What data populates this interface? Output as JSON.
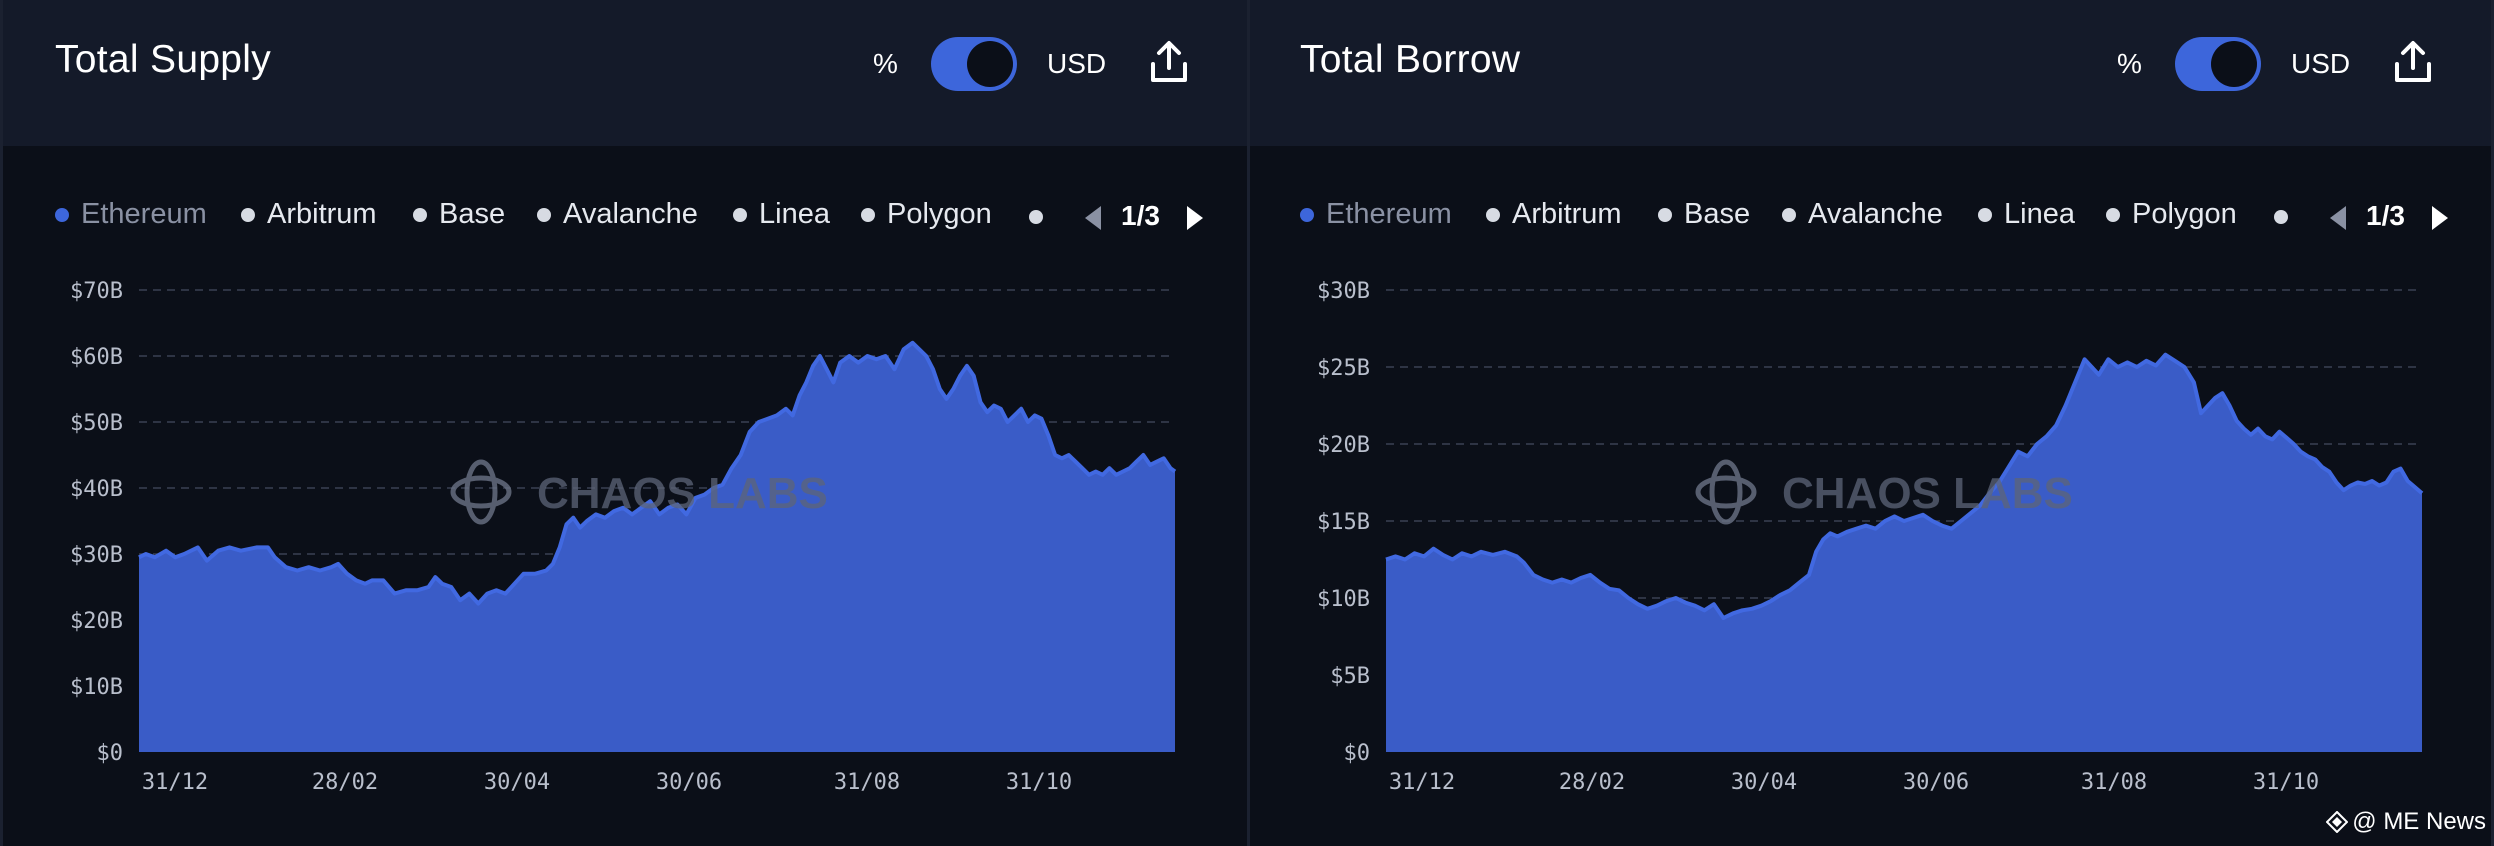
{
  "panels": [
    {
      "title": "Total Supply",
      "toggle_left": "%",
      "toggle_right": "USD",
      "legend": [
        "Ethereum",
        "Arbitrum",
        "Base",
        "Avalanche",
        "Linea",
        "Polygon"
      ],
      "pager": "1/3",
      "watermark": "CHAOS LABS"
    },
    {
      "title": "Total Borrow",
      "toggle_left": "%",
      "toggle_right": "USD",
      "legend": [
        "Ethereum",
        "Arbitrum",
        "Base",
        "Avalanche",
        "Linea",
        "Polygon"
      ],
      "pager": "1/3",
      "watermark": "CHAOS LABS"
    }
  ],
  "credit": "@ ME News",
  "colors": {
    "series": "#3a5cc7",
    "line": "#4169e1",
    "active_dot": "#3d66db"
  },
  "chart_data": [
    {
      "type": "area",
      "title": "Total Supply",
      "series_name": "Ethereum",
      "x_tick_labels": [
        "31/12",
        "28/02",
        "30/04",
        "30/06",
        "31/08",
        "31/10"
      ],
      "y_tick_labels": [
        "$0",
        "$10B",
        "$20B",
        "$30B",
        "$40B",
        "$50B",
        "$60B",
        "$70B"
      ],
      "ylim": [
        0,
        70
      ],
      "unit": "B USD",
      "grid": true,
      "points": [
        [
          0,
          29.5
        ],
        [
          3,
          30
        ],
        [
          7,
          29.5
        ],
        [
          12,
          30.5
        ],
        [
          16,
          29.5
        ],
        [
          20,
          30
        ],
        [
          26,
          31
        ],
        [
          30,
          29
        ],
        [
          35,
          30.5
        ],
        [
          40,
          31
        ],
        [
          45,
          30.5
        ],
        [
          52,
          31
        ],
        [
          57,
          31
        ],
        [
          60,
          29.5
        ],
        [
          65,
          28
        ],
        [
          70,
          27.5
        ],
        [
          75,
          28
        ],
        [
          80,
          27.5
        ],
        [
          85,
          28
        ],
        [
          88,
          28.5
        ],
        [
          92,
          27
        ],
        [
          96,
          26
        ],
        [
          100,
          25.5
        ],
        [
          103,
          26
        ],
        [
          108,
          26
        ],
        [
          113,
          24
        ],
        [
          118,
          24.5
        ],
        [
          123,
          24.5
        ],
        [
          128,
          25
        ],
        [
          131,
          26.5
        ],
        [
          134,
          25.5
        ],
        [
          138,
          25
        ],
        [
          142,
          23
        ],
        [
          146,
          24
        ],
        [
          150,
          22.5
        ],
        [
          154,
          24
        ],
        [
          158,
          24.5
        ],
        [
          162,
          24
        ],
        [
          166,
          25.5
        ],
        [
          170,
          27
        ],
        [
          175,
          27
        ],
        [
          180,
          27.5
        ],
        [
          183,
          28.5
        ],
        [
          186,
          31
        ],
        [
          189,
          34.5
        ],
        [
          192,
          35.5
        ],
        [
          195,
          34
        ],
        [
          198,
          35
        ],
        [
          202,
          36
        ],
        [
          206,
          35.5
        ],
        [
          210,
          36.5
        ],
        [
          214,
          37
        ],
        [
          218,
          36
        ],
        [
          222,
          37
        ],
        [
          226,
          38
        ],
        [
          230,
          36
        ],
        [
          234,
          37
        ],
        [
          238,
          37.5
        ],
        [
          242,
          36
        ],
        [
          246,
          38.5
        ],
        [
          250,
          39
        ],
        [
          254,
          40
        ],
        [
          258,
          40.5
        ],
        [
          262,
          43
        ],
        [
          266,
          45
        ],
        [
          270,
          48.5
        ],
        [
          274,
          50
        ],
        [
          278,
          50.5
        ],
        [
          282,
          51
        ],
        [
          286,
          52
        ],
        [
          289,
          51
        ],
        [
          292,
          54
        ],
        [
          295,
          56
        ],
        [
          298,
          58.5
        ],
        [
          301,
          60
        ],
        [
          304,
          58
        ],
        [
          307,
          56
        ],
        [
          310,
          59
        ],
        [
          314,
          60
        ],
        [
          318,
          59
        ],
        [
          322,
          60
        ],
        [
          326,
          59.5
        ],
        [
          330,
          60
        ],
        [
          334,
          58
        ],
        [
          338,
          61
        ],
        [
          342,
          62
        ],
        [
          345,
          61
        ],
        [
          348,
          60
        ],
        [
          351,
          58
        ],
        [
          354,
          55
        ],
        [
          357,
          53.5
        ],
        [
          360,
          55
        ],
        [
          363,
          57
        ],
        [
          366,
          58.5
        ],
        [
          369,
          57
        ],
        [
          372,
          53
        ],
        [
          375,
          51.5
        ],
        [
          378,
          52.5
        ],
        [
          381,
          52
        ],
        [
          384,
          50
        ],
        [
          387,
          51
        ],
        [
          390,
          52
        ],
        [
          393,
          50
        ],
        [
          396,
          51
        ],
        [
          399,
          50.5
        ],
        [
          402,
          48
        ],
        [
          405,
          45
        ],
        [
          408,
          44.5
        ],
        [
          411,
          45
        ],
        [
          414,
          44
        ],
        [
          417,
          43
        ],
        [
          420,
          42
        ],
        [
          423,
          42.5
        ],
        [
          426,
          42
        ],
        [
          429,
          43
        ],
        [
          432,
          42
        ],
        [
          435,
          42.5
        ],
        [
          438,
          43
        ],
        [
          441,
          44
        ],
        [
          444,
          45
        ],
        [
          447,
          43.5
        ],
        [
          450,
          44
        ],
        [
          453,
          44.5
        ],
        [
          456,
          43
        ],
        [
          458,
          42.5
        ]
      ]
    },
    {
      "type": "area",
      "title": "Total Borrow",
      "series_name": "Ethereum",
      "x_tick_labels": [
        "31/12",
        "28/02",
        "30/04",
        "30/06",
        "31/08",
        "31/10"
      ],
      "y_tick_labels": [
        "$0",
        "$5B",
        "$10B",
        "$15B",
        "$20B",
        "$25B",
        "$30B"
      ],
      "ylim": [
        0,
        30
      ],
      "unit": "B USD",
      "grid": true,
      "points": [
        [
          0,
          12.5
        ],
        [
          4,
          12.7
        ],
        [
          8,
          12.5
        ],
        [
          12,
          12.9
        ],
        [
          16,
          12.7
        ],
        [
          20,
          13.2
        ],
        [
          24,
          12.8
        ],
        [
          28,
          12.5
        ],
        [
          32,
          12.9
        ],
        [
          36,
          12.7
        ],
        [
          40,
          13.0
        ],
        [
          45,
          12.8
        ],
        [
          50,
          13.0
        ],
        [
          55,
          12.7
        ],
        [
          58,
          12.3
        ],
        [
          62,
          11.5
        ],
        [
          66,
          11.2
        ],
        [
          70,
          11.0
        ],
        [
          74,
          11.2
        ],
        [
          78,
          11.0
        ],
        [
          82,
          11.3
        ],
        [
          86,
          11.5
        ],
        [
          90,
          11.0
        ],
        [
          94,
          10.6
        ],
        [
          98,
          10.5
        ],
        [
          102,
          10.0
        ],
        [
          106,
          9.6
        ],
        [
          110,
          9.3
        ],
        [
          114,
          9.5
        ],
        [
          118,
          9.8
        ],
        [
          122,
          10.0
        ],
        [
          126,
          9.7
        ],
        [
          130,
          9.5
        ],
        [
          134,
          9.2
        ],
        [
          138,
          9.6
        ],
        [
          142,
          8.7
        ],
        [
          146,
          9.0
        ],
        [
          150,
          9.2
        ],
        [
          154,
          9.3
        ],
        [
          158,
          9.5
        ],
        [
          162,
          9.8
        ],
        [
          166,
          10.2
        ],
        [
          170,
          10.5
        ],
        [
          174,
          11.0
        ],
        [
          178,
          11.5
        ],
        [
          181,
          13.0
        ],
        [
          184,
          13.8
        ],
        [
          187,
          14.2
        ],
        [
          190,
          14.0
        ],
        [
          194,
          14.3
        ],
        [
          198,
          14.5
        ],
        [
          202,
          14.7
        ],
        [
          206,
          14.5
        ],
        [
          210,
          15.0
        ],
        [
          214,
          15.3
        ],
        [
          218,
          15.0
        ],
        [
          222,
          15.2
        ],
        [
          226,
          15.4
        ],
        [
          230,
          15.0
        ],
        [
          234,
          14.7
        ],
        [
          238,
          14.5
        ],
        [
          242,
          15.0
        ],
        [
          246,
          15.5
        ],
        [
          250,
          16.0
        ],
        [
          254,
          16.8
        ],
        [
          258,
          17.5
        ],
        [
          262,
          18.5
        ],
        [
          266,
          19.5
        ],
        [
          270,
          19.2
        ],
        [
          274,
          20.0
        ],
        [
          278,
          20.5
        ],
        [
          282,
          21.2
        ],
        [
          286,
          22.5
        ],
        [
          290,
          24.0
        ],
        [
          294,
          25.5
        ],
        [
          297,
          25.0
        ],
        [
          300,
          24.5
        ],
        [
          304,
          25.5
        ],
        [
          308,
          25.0
        ],
        [
          312,
          25.3
        ],
        [
          316,
          25.0
        ],
        [
          320,
          25.4
        ],
        [
          324,
          25.1
        ],
        [
          328,
          25.8
        ],
        [
          332,
          25.4
        ],
        [
          336,
          25.0
        ],
        [
          340,
          24.0
        ],
        [
          343,
          22.0
        ],
        [
          346,
          22.5
        ],
        [
          349,
          23.0
        ],
        [
          352,
          23.3
        ],
        [
          355,
          22.5
        ],
        [
          358,
          21.5
        ],
        [
          361,
          21.0
        ],
        [
          364,
          20.6
        ],
        [
          367,
          21.0
        ],
        [
          370,
          20.5
        ],
        [
          373,
          20.3
        ],
        [
          376,
          20.8
        ],
        [
          379,
          20.4
        ],
        [
          382,
          20.0
        ],
        [
          385,
          19.5
        ],
        [
          388,
          19.2
        ],
        [
          391,
          19.0
        ],
        [
          394,
          18.5
        ],
        [
          397,
          18.2
        ],
        [
          400,
          17.5
        ],
        [
          403,
          17.0
        ],
        [
          406,
          17.3
        ],
        [
          409,
          17.5
        ],
        [
          412,
          17.4
        ],
        [
          415,
          17.6
        ],
        [
          418,
          17.3
        ],
        [
          421,
          17.5
        ],
        [
          424,
          18.2
        ],
        [
          427,
          18.4
        ],
        [
          430,
          17.6
        ],
        [
          433,
          17.2
        ],
        [
          436,
          16.8
        ]
      ]
    }
  ]
}
